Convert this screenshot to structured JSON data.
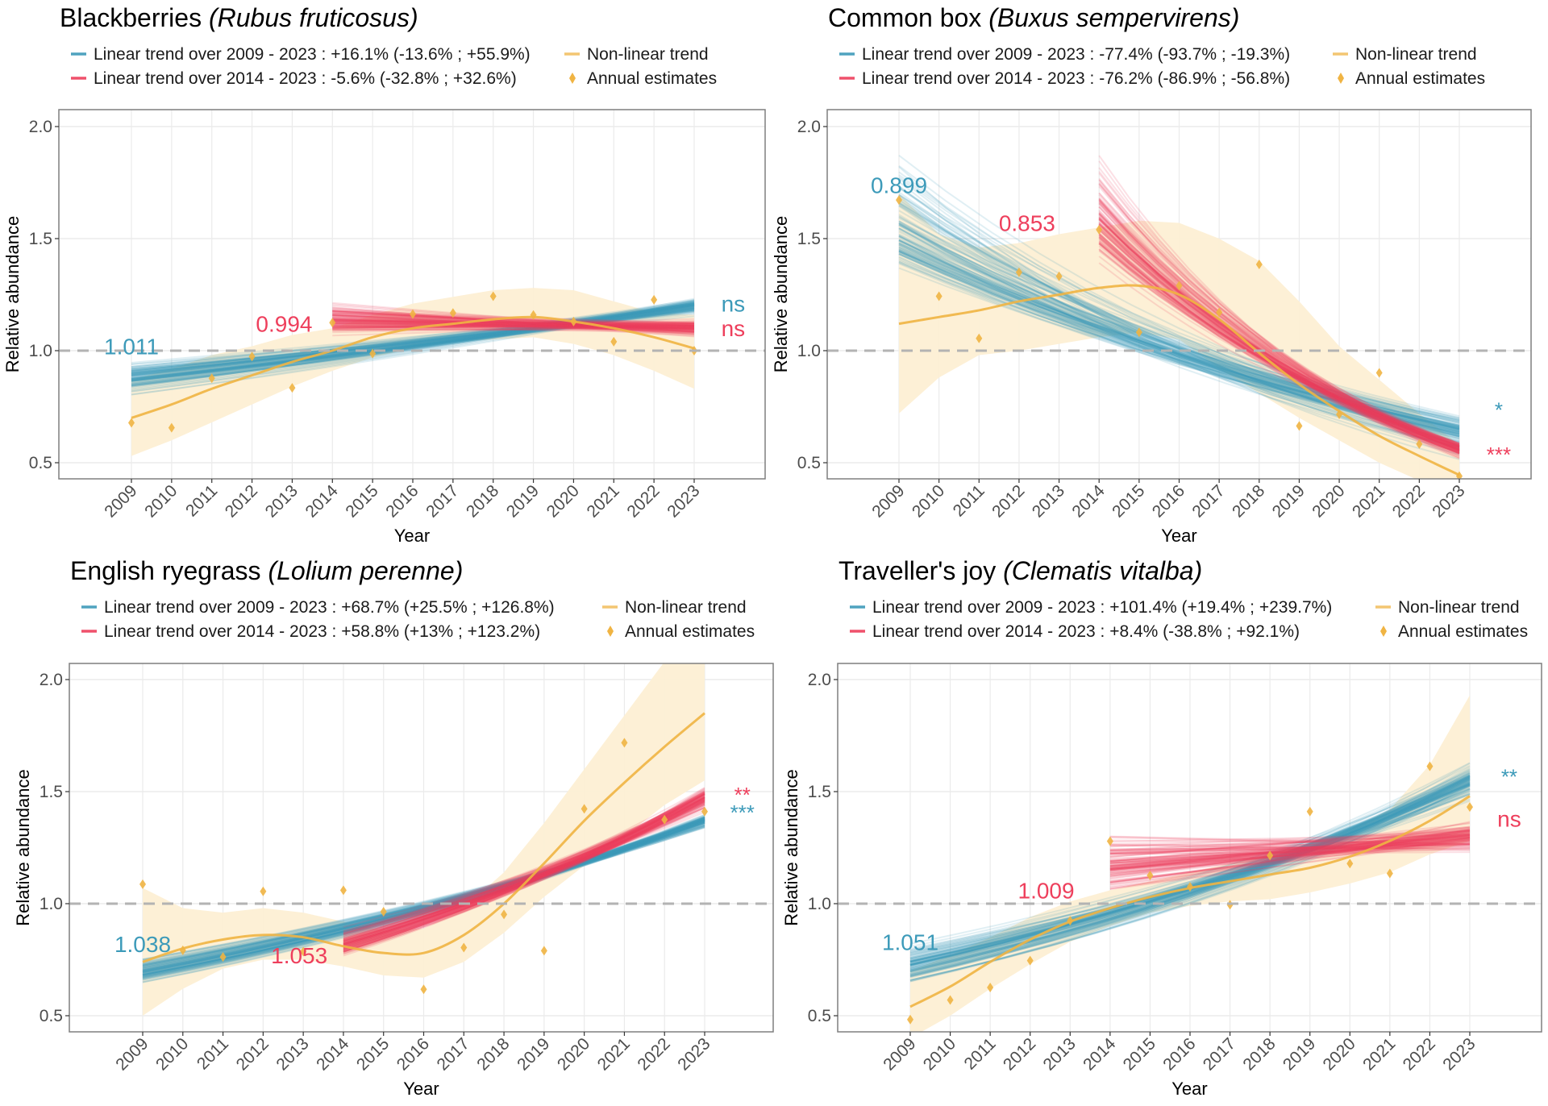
{
  "colors": {
    "linear_full": "#3c9ab9",
    "linear_recent": "#ee3f5c",
    "nonlinear": "#f0b443",
    "band": "#fdefd4",
    "reference": "#b3b3b3",
    "grid": "#ebebeb",
    "border": "#7f7f7f"
  },
  "chart_data": [
    {
      "type": "line",
      "title": "Blackberries",
      "title_latin": "(Rubus fruticosus)",
      "xlabel": "Year",
      "ylabel": "Relative abundance",
      "ylim": [
        0.43,
        2.075
      ],
      "yticks": [
        "0.5",
        "1.0",
        "1.5",
        "2.0"
      ],
      "ytick_values": [
        0.5,
        1.0,
        1.5,
        2.0
      ],
      "x": [
        2009,
        2010,
        2011,
        2012,
        2013,
        2014,
        2015,
        2016,
        2017,
        2018,
        2019,
        2020,
        2021,
        2022,
        2023
      ],
      "reference_line": 1.0,
      "grid": true,
      "legend": {
        "position": "top",
        "items": [
          {
            "key": "linear_full",
            "label": "Linear trend over 2009 - 2023 : +16.1% (-13.6% ; +55.9%)"
          },
          {
            "key": "nonlinear",
            "label": "Non-linear trend"
          },
          {
            "key": "linear_recent",
            "label": "Linear trend over 2014 - 2023 : -5.6% (-32.8% ; +32.6%)"
          },
          {
            "key": "annual",
            "label": "Annual estimates"
          }
        ]
      },
      "annual_estimates": [
        0.678,
        0.656,
        0.877,
        0.974,
        0.834,
        1.125,
        0.987,
        1.163,
        1.168,
        1.243,
        1.159,
        1.13,
        1.04,
        1.227,
        1.0
      ],
      "nonlinear_trend": [
        0.7,
        0.76,
        0.83,
        0.89,
        0.95,
        1.0,
        1.06,
        1.1,
        1.12,
        1.14,
        1.15,
        1.13,
        1.1,
        1.06,
        1.01
      ],
      "nonlinear_lower": [
        0.53,
        0.6,
        0.68,
        0.76,
        0.84,
        0.91,
        0.97,
        1.01,
        1.04,
        1.05,
        1.06,
        1.03,
        0.98,
        0.91,
        0.83
      ],
      "nonlinear_upper": [
        0.87,
        0.92,
        0.98,
        1.02,
        1.07,
        1.1,
        1.16,
        1.21,
        1.24,
        1.27,
        1.28,
        1.27,
        1.22,
        1.17,
        1.16
      ],
      "linear_full": {
        "start_year": 2009,
        "end_year": 2023,
        "start": [
          0.78,
          0.88,
          0.98
        ],
        "end": [
          1.1,
          1.2,
          1.34
        ]
      },
      "linear_recent": {
        "start_year": 2014,
        "end_year": 2023,
        "start": [
          1.04,
          1.14,
          1.26
        ],
        "end": [
          0.98,
          1.1,
          1.22
        ]
      },
      "annotations": {
        "full_value": {
          "text": "1.011",
          "year": 2009,
          "y": 1.02
        },
        "recent_value": {
          "text": "0.994",
          "year": 2012.8,
          "y": 1.12
        },
        "sig_full": {
          "text": "ns",
          "y": 1.21
        },
        "sig_recent": {
          "text": "ns",
          "y": 1.1
        }
      }
    },
    {
      "type": "line",
      "title": "Common box",
      "title_latin": "(Buxus sempervirens)",
      "xlabel": "Year",
      "ylabel": "Relative abundance",
      "ylim": [
        0.43,
        2.075
      ],
      "yticks": [
        "0.5",
        "1.0",
        "1.5",
        "2.0"
      ],
      "ytick_values": [
        0.5,
        1.0,
        1.5,
        2.0
      ],
      "x": [
        2009,
        2010,
        2011,
        2012,
        2013,
        2014,
        2015,
        2016,
        2017,
        2018,
        2019,
        2020,
        2021,
        2022,
        2023
      ],
      "reference_line": 1.0,
      "grid": true,
      "legend": {
        "position": "top",
        "items": [
          {
            "key": "linear_full",
            "label": "Linear trend over 2009 - 2023 : -77.4% (-93.7% ; -19.3%)"
          },
          {
            "key": "nonlinear",
            "label": "Non-linear trend"
          },
          {
            "key": "linear_recent",
            "label": "Linear trend over 2014 - 2023 : -76.2% (-86.9% ; -56.8%)"
          },
          {
            "key": "annual",
            "label": "Annual estimates"
          }
        ]
      },
      "annual_estimates": [
        1.672,
        1.243,
        1.055,
        1.35,
        1.332,
        1.54,
        1.082,
        1.29,
        1.171,
        1.385,
        0.664,
        0.716,
        0.901,
        0.583,
        0.44
      ],
      "nonlinear_trend": [
        1.12,
        1.15,
        1.18,
        1.22,
        1.25,
        1.28,
        1.29,
        1.25,
        1.14,
        0.99,
        0.85,
        0.73,
        0.62,
        0.53,
        0.445
      ],
      "nonlinear_lower": [
        0.72,
        0.88,
        0.98,
        1.0,
        1.03,
        1.06,
        1.08,
        1.05,
        0.92,
        0.81,
        0.7,
        0.6,
        0.5,
        0.42,
        0.33
      ],
      "nonlinear_upper": [
        1.7,
        1.52,
        1.46,
        1.48,
        1.52,
        1.55,
        1.58,
        1.57,
        1.5,
        1.4,
        1.22,
        1.02,
        0.87,
        0.72,
        0.58
      ],
      "linear_full": {
        "start_year": 2009,
        "end_year": 2023,
        "start": [
          1.25,
          1.5,
          2.02
        ],
        "end": [
          0.42,
          0.64,
          1.02
        ]
      },
      "linear_recent": {
        "start_year": 2014,
        "end_year": 2023,
        "start": [
          1.3,
          1.58,
          1.98
        ],
        "end": [
          0.44,
          0.56,
          0.72
        ]
      },
      "annotations": {
        "full_value": {
          "text": "0.899",
          "year": 2009,
          "y": 1.74
        },
        "recent_value": {
          "text": "0.853",
          "year": 2012.2,
          "y": 1.57
        },
        "sig_full": {
          "text": "*",
          "y": 0.74
        },
        "sig_recent": {
          "text": "***",
          "y": 0.54
        }
      }
    },
    {
      "type": "line",
      "title": "English ryegrass",
      "title_latin": "(Lolium perenne)",
      "xlabel": "Year",
      "ylabel": "Relative abundance",
      "ylim": [
        0.43,
        2.075
      ],
      "yticks": [
        "0.5",
        "1.0",
        "1.5",
        "2.0"
      ],
      "ytick_values": [
        0.5,
        1.0,
        1.5,
        2.0
      ],
      "x": [
        2009,
        2010,
        2011,
        2012,
        2013,
        2014,
        2015,
        2016,
        2017,
        2018,
        2019,
        2020,
        2021,
        2022,
        2023
      ],
      "reference_line": 1.0,
      "grid": true,
      "legend": {
        "position": "top",
        "items": [
          {
            "key": "linear_full",
            "label": "Linear trend over 2009 - 2023 : +68.7% (+25.5% ; +126.8%)"
          },
          {
            "key": "nonlinear",
            "label": "Non-linear trend"
          },
          {
            "key": "linear_recent",
            "label": "Linear trend over 2014 - 2023 : +58.8% (+13% ; +123.2%)"
          },
          {
            "key": "annual",
            "label": "Annual estimates"
          }
        ]
      },
      "annual_estimates": [
        1.087,
        0.792,
        0.762,
        1.055,
        0.786,
        1.06,
        0.964,
        0.618,
        0.804,
        0.952,
        0.79,
        1.423,
        1.718,
        1.375,
        1.411
      ],
      "nonlinear_trend": [
        0.74,
        0.8,
        0.84,
        0.86,
        0.85,
        0.81,
        0.78,
        0.78,
        0.86,
        1.0,
        1.18,
        1.37,
        1.54,
        1.7,
        1.85
      ],
      "nonlinear_lower": [
        0.5,
        0.62,
        0.71,
        0.75,
        0.75,
        0.72,
        0.68,
        0.67,
        0.74,
        0.87,
        1.03,
        1.17,
        1.3,
        1.44,
        1.55
      ],
      "nonlinear_upper": [
        1.07,
        0.98,
        0.96,
        0.98,
        0.96,
        0.92,
        0.88,
        0.89,
        0.98,
        1.14,
        1.36,
        1.6,
        1.84,
        2.08,
        2.15
      ],
      "linear_full": {
        "start_year": 2009,
        "end_year": 2023,
        "start": [
          0.63,
          0.7,
          0.78
        ],
        "end": [
          1.26,
          1.37,
          1.5
        ]
      },
      "linear_recent": {
        "start_year": 2014,
        "end_year": 2023,
        "start": [
          0.73,
          0.82,
          0.92
        ],
        "end": [
          1.3,
          1.47,
          1.72
        ]
      },
      "annotations": {
        "full_value": {
          "text": "1.038",
          "year": 2009,
          "y": 0.82
        },
        "recent_value": {
          "text": "1.053",
          "year": 2012.9,
          "y": 0.77
        },
        "sig_full": {
          "text": "***",
          "y": 1.41
        },
        "sig_recent": {
          "text": "**",
          "y": 1.49
        }
      }
    },
    {
      "type": "line",
      "title": "Traveller's joy",
      "title_latin": "(Clematis vitalba)",
      "xlabel": "Year",
      "ylabel": "Relative abundance",
      "ylim": [
        0.43,
        2.075
      ],
      "yticks": [
        "0.5",
        "1.0",
        "1.5",
        "2.0"
      ],
      "ytick_values": [
        0.5,
        1.0,
        1.5,
        2.0
      ],
      "x": [
        2009,
        2010,
        2011,
        2012,
        2013,
        2014,
        2015,
        2016,
        2017,
        2018,
        2019,
        2020,
        2021,
        2022,
        2023
      ],
      "reference_line": 1.0,
      "grid": true,
      "legend": {
        "position": "top",
        "items": [
          {
            "key": "linear_full",
            "label": "Linear trend over 2009 - 2023 : +101.4% (+19.4% ; +239.7%)"
          },
          {
            "key": "nonlinear",
            "label": "Non-linear trend"
          },
          {
            "key": "linear_recent",
            "label": "Linear trend over 2014 - 2023 : +8.4% (-38.8% ; +92.1%)"
          },
          {
            "key": "annual",
            "label": "Annual estimates"
          }
        ]
      },
      "annual_estimates": [
        0.483,
        0.57,
        0.626,
        0.746,
        0.924,
        1.279,
        1.126,
        1.075,
        0.995,
        1.215,
        1.411,
        1.179,
        1.135,
        1.613,
        1.431
      ],
      "nonlinear_trend": [
        0.54,
        0.63,
        0.74,
        0.84,
        0.92,
        0.98,
        1.03,
        1.07,
        1.1,
        1.13,
        1.16,
        1.21,
        1.28,
        1.37,
        1.48
      ],
      "nonlinear_lower": [
        0.4,
        0.5,
        0.62,
        0.73,
        0.83,
        0.9,
        0.96,
        0.99,
        1.01,
        1.02,
        1.05,
        1.09,
        1.14,
        1.22,
        1.28
      ],
      "nonlinear_upper": [
        0.7,
        0.77,
        0.85,
        0.94,
        1.01,
        1.06,
        1.1,
        1.14,
        1.18,
        1.22,
        1.27,
        1.33,
        1.42,
        1.62,
        1.93
      ],
      "linear_full": {
        "start_year": 2009,
        "end_year": 2023,
        "start": [
          0.6,
          0.72,
          0.9
        ],
        "end": [
          1.3,
          1.55,
          1.82
        ]
      },
      "linear_recent": {
        "start_year": 2014,
        "end_year": 2023,
        "start": [
          1.0,
          1.18,
          1.38
        ],
        "end": [
          1.08,
          1.3,
          1.58
        ]
      },
      "annotations": {
        "full_value": {
          "text": "1.051",
          "year": 2009,
          "y": 0.83
        },
        "recent_value": {
          "text": "1.009",
          "year": 2012.4,
          "y": 1.06
        },
        "sig_full": {
          "text": "**",
          "y": 1.57
        },
        "sig_recent": {
          "text": "ns",
          "y": 1.38
        }
      }
    }
  ]
}
